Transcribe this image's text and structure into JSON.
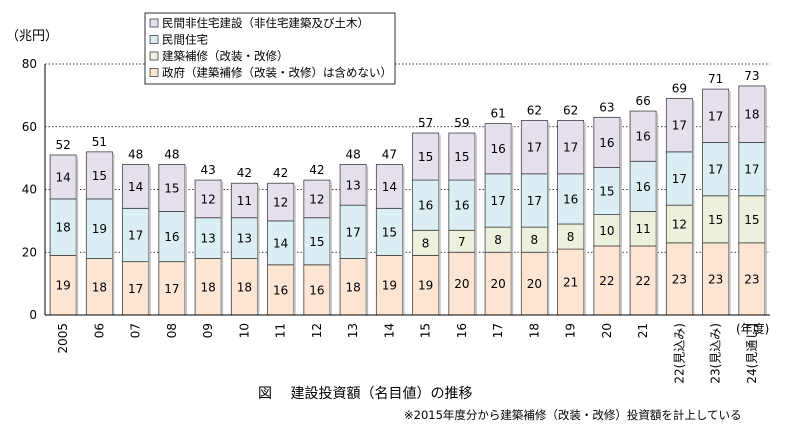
{
  "chart_data": {
    "type": "bar",
    "stacked": true,
    "ylabel": "（兆円）",
    "xlabel": "(年度)",
    "ylim": [
      0,
      80
    ],
    "yticks": [
      0,
      20,
      40,
      60,
      80
    ],
    "caption": "図　 建設投資額（名目値）の推移",
    "footnote": "※2015年度分から建築補修（改装・改修）投資額を計上している",
    "legend_position": "top-center",
    "categories": [
      "2005",
      "06",
      "07",
      "08",
      "09",
      "10",
      "11",
      "12",
      "13",
      "14",
      "15",
      "16",
      "17",
      "18",
      "19",
      "20",
      "21",
      "22(見込み)",
      "23(見込み)",
      "24(見通し)"
    ],
    "totals": [
      52,
      51,
      48,
      48,
      43,
      42,
      42,
      42,
      48,
      47,
      57,
      59,
      61,
      62,
      62,
      63,
      66,
      69,
      71,
      73
    ],
    "series": [
      {
        "name": "政府（建築補修（改装・改修）は含めない）",
        "color": "#fde5d4",
        "values": [
          19,
          18,
          17,
          17,
          18,
          18,
          16,
          16,
          18,
          19,
          19,
          20,
          20,
          20,
          21,
          22,
          22,
          23,
          23,
          23
        ]
      },
      {
        "name": "建築補修（改装・改修）",
        "color": "#ebf1dd",
        "values": [
          null,
          null,
          null,
          null,
          null,
          null,
          null,
          null,
          null,
          null,
          8,
          7,
          8,
          8,
          8,
          10,
          11,
          12,
          15,
          15
        ]
      },
      {
        "name": "民間住宅",
        "color": "#dbeef4",
        "values": [
          18,
          19,
          17,
          16,
          13,
          13,
          14,
          15,
          17,
          15,
          16,
          16,
          17,
          17,
          16,
          15,
          16,
          17,
          17,
          17
        ]
      },
      {
        "name": "民間非住宅建設（非住宅建築及び土木）",
        "color": "#e5e0ec",
        "values": [
          14,
          15,
          14,
          15,
          12,
          11,
          12,
          12,
          13,
          14,
          15,
          15,
          16,
          17,
          17,
          16,
          16,
          17,
          17,
          18
        ]
      }
    ]
  }
}
